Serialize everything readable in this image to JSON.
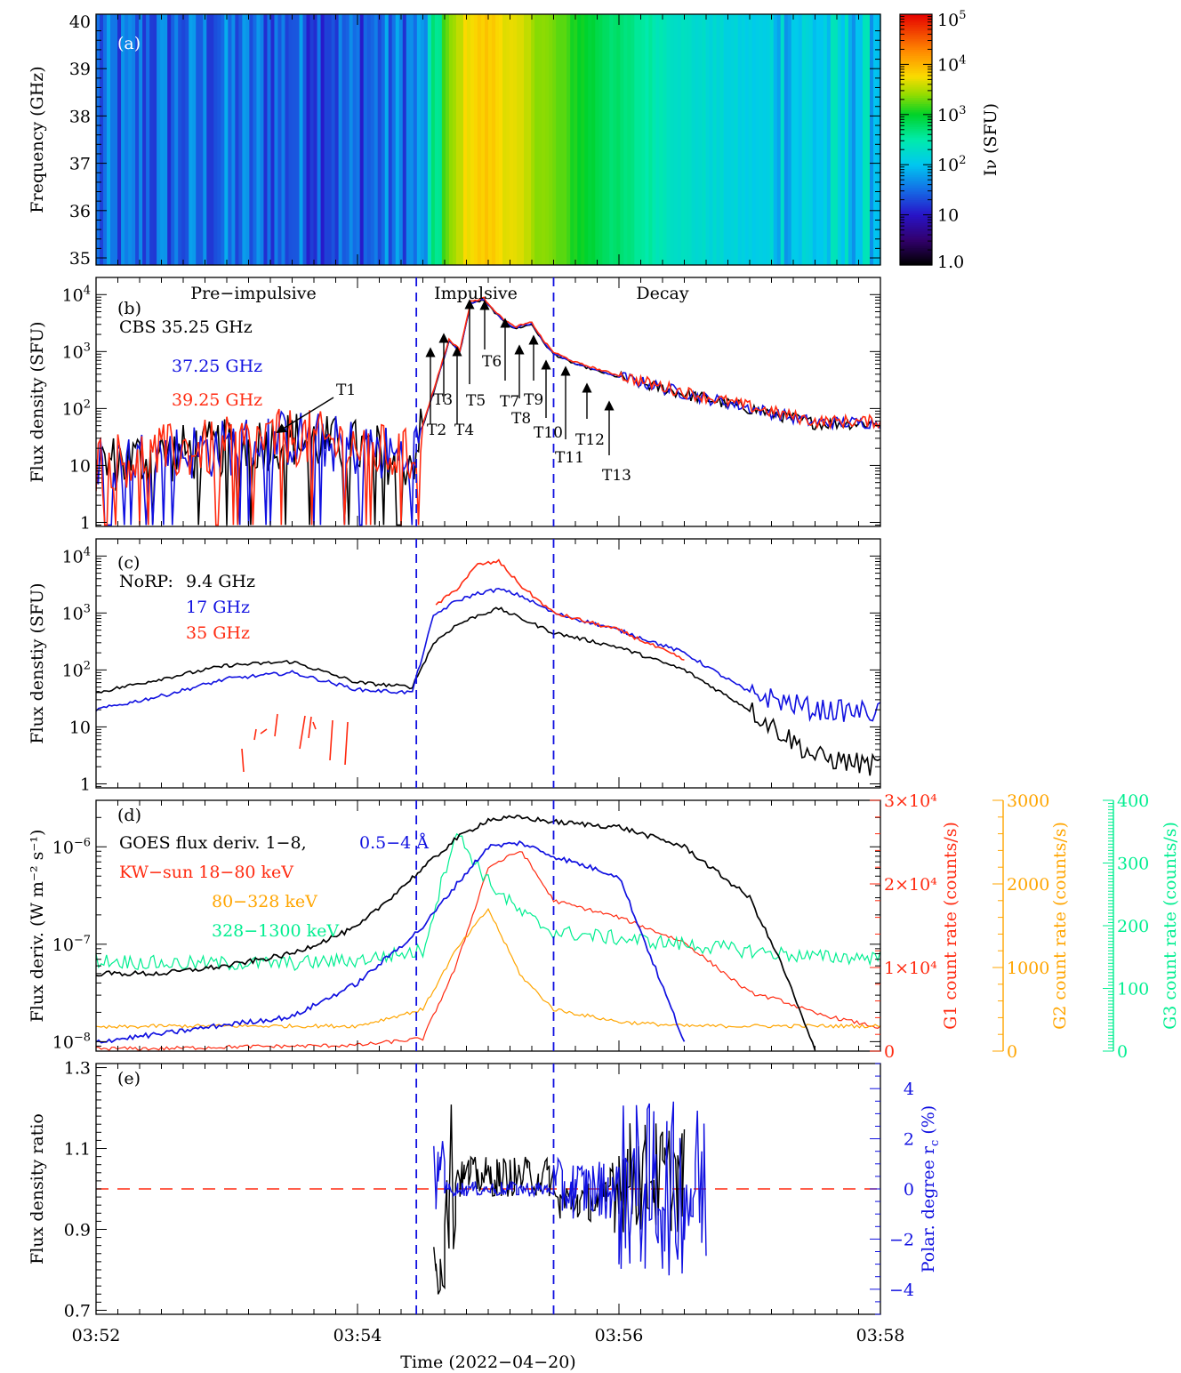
{
  "chart_data": [
    {
      "panel": "(a)",
      "type": "heatmap",
      "ylabel": "Frequency (GHz)",
      "yticks": [
        "35",
        "36",
        "37",
        "38",
        "39",
        "40"
      ],
      "ylim": [
        34.85,
        40.15
      ],
      "xlim": [
        "03:52",
        "03:58"
      ],
      "colorbar": {
        "label": "Iν (SFU)",
        "scale": "log",
        "range": [
          1.0,
          100000
        ],
        "ticks": [
          "1.0",
          "10",
          "10²",
          "10³",
          "10⁴",
          "10⁵"
        ]
      },
      "intensity_profile": {
        "description": "time profile of intensity (SFU), nearly uniform across frequency",
        "time": [
          "03:52:00",
          "03:53:00",
          "03:54:00",
          "03:54:30",
          "03:54:40",
          "03:54:50",
          "03:55:00",
          "03:55:20",
          "03:55:40",
          "03:56:00",
          "03:56:30",
          "03:57:00",
          "03:58:00"
        ],
        "values": [
          25,
          30,
          25,
          40,
          1500,
          5500,
          7500,
          3000,
          1200,
          500,
          200,
          120,
          110
        ]
      }
    },
    {
      "panel": "(b)",
      "type": "line",
      "ylabel": "Flux density (SFU)",
      "yscale": "log",
      "ylim": [
        0.85,
        20000
      ],
      "yticks": [
        "1",
        "10",
        "10²",
        "10³",
        "10⁴"
      ],
      "phase_labels": [
        "Pre−impulsive",
        "Impulsive",
        "Decay"
      ],
      "vlines": [
        "03:54:27",
        "03:55:30"
      ],
      "series": [
        {
          "name": "CBS 35.25 GHz",
          "color": "#000000"
        },
        {
          "name": "37.25 GHz",
          "color": "#1010e0"
        },
        {
          "name": "39.25 GHz",
          "color": "#ff2a10"
        }
      ],
      "time": [
        "03:52:00",
        "03:52:30",
        "03:53:00",
        "03:53:30",
        "03:54:00",
        "03:54:25",
        "03:54:35",
        "03:54:42",
        "03:54:47",
        "03:54:52",
        "03:54:58",
        "03:55:05",
        "03:55:12",
        "03:55:20",
        "03:55:25",
        "03:55:30",
        "03:55:40",
        "03:55:55",
        "03:56:10",
        "03:56:30",
        "03:57:00",
        "03:57:30",
        "03:58:00"
      ],
      "values": [
        10,
        15,
        20,
        30,
        20,
        12,
        200,
        1500,
        1000,
        7000,
        8000,
        4000,
        2500,
        3000,
        1500,
        900,
        600,
        400,
        280,
        180,
        100,
        55,
        55
      ],
      "annotations": [
        "T1",
        "T2",
        "T3",
        "T4",
        "T5",
        "T6",
        "T7",
        "T8",
        "T9",
        "T10",
        "T11",
        "T12",
        "T13"
      ]
    },
    {
      "panel": "(c)",
      "type": "line",
      "ylabel": "Flux denstiy (SFU)",
      "yscale": "log",
      "ylim": [
        0.85,
        20000
      ],
      "yticks": [
        "1",
        "10",
        "10²",
        "10³",
        "10⁴"
      ],
      "legend_title": "NoRP:",
      "time": [
        "03:52:00",
        "03:52:30",
        "03:53:00",
        "03:53:30",
        "03:54:00",
        "03:54:25",
        "03:54:35",
        "03:54:45",
        "03:54:55",
        "03:55:05",
        "03:55:15",
        "03:55:30",
        "03:56:00",
        "03:56:30",
        "03:57:00",
        "03:57:30",
        "03:58:00"
      ],
      "series": [
        {
          "name": "9.4 GHz",
          "color": "#000000",
          "values": [
            40,
            70,
            120,
            140,
            60,
            50,
            300,
            600,
            900,
            1200,
            800,
            450,
            250,
            100,
            20,
            3,
            2
          ]
        },
        {
          "name": "17 GHz",
          "color": "#1010e0",
          "values": [
            20,
            35,
            70,
            90,
            45,
            40,
            900,
            1600,
            2200,
            2600,
            2000,
            1000,
            500,
            200,
            40,
            20,
            18
          ]
        },
        {
          "name": "35 GHz",
          "color": "#ff2a10",
          "values": [
            null,
            null,
            null,
            null,
            null,
            null,
            1300,
            2500,
            7000,
            8000,
            3000,
            1000,
            500,
            150,
            null,
            null,
            null
          ]
        }
      ]
    },
    {
      "panel": "(d)",
      "type": "line",
      "ylabel": "Flux deriv. (W m⁻² s⁻¹)",
      "yscale": "log",
      "ylim": [
        8e-09,
        3e-06
      ],
      "yticks": [
        "10⁻⁸",
        "10⁻⁷",
        "10⁻⁶"
      ],
      "right_axes": [
        {
          "label": "G1 count rate (counts/s)",
          "color": "#ff2a10",
          "range": [
            0,
            30000
          ],
          "ticks": [
            "0",
            "1×10⁴",
            "2×10⁴",
            "3×10⁴"
          ]
        },
        {
          "label": "G2 count rate (counts/s)",
          "color": "#ffa500",
          "range": [
            0,
            3000
          ],
          "ticks": [
            "0",
            "1000",
            "2000",
            "3000"
          ]
        },
        {
          "label": "G3 count rate (counts/s)",
          "color": "#00ee90",
          "range": [
            0,
            400
          ],
          "ticks": [
            "0",
            "100",
            "200",
            "300",
            "400"
          ]
        }
      ],
      "legend": [
        "GOES flux deriv. 1−8,",
        "0.5−4 Å",
        "KW−sun 18−80 keV",
        "80−328 keV",
        "328−1300 keV"
      ],
      "time": [
        "03:52:00",
        "03:52:30",
        "03:53:00",
        "03:53:30",
        "03:54:00",
        "03:54:30",
        "03:54:45",
        "03:55:00",
        "03:55:15",
        "03:55:30",
        "03:56:00",
        "03:56:30",
        "03:57:00",
        "03:57:15",
        "03:57:30",
        "03:58:00"
      ],
      "series": [
        {
          "name": "GOES 1−8",
          "color": "#000000",
          "axis": "left",
          "values": [
            5e-08,
            5e-08,
            6e-08,
            8e-08,
            1.5e-07,
            6e-07,
            1.2e-06,
            1.9e-06,
            2e-06,
            1.8e-06,
            1.6e-06,
            1e-06,
            3e-07,
            6e-08,
            8e-09,
            null
          ]
        },
        {
          "name": "GOES 0.5−4",
          "color": "#1010e0",
          "axis": "left",
          "values": [
            1e-08,
            1.2e-08,
            1.5e-08,
            1.8e-08,
            4e-08,
            1.5e-07,
            4e-07,
            1e-06,
            1.1e-06,
            8e-07,
            5e-07,
            1e-08,
            null,
            null,
            null,
            null
          ]
        },
        {
          "name": "18−80 keV",
          "color": "#ff2a10",
          "axis": "G1",
          "values": [
            300,
            300,
            500,
            600,
            700,
            1500,
            10000,
            22000,
            24000,
            18000,
            16000,
            13000,
            7000,
            6000,
            4500,
            2800
          ]
        },
        {
          "name": "80−328 keV",
          "color": "#ffa500",
          "axis": "G2",
          "values": [
            280,
            300,
            300,
            300,
            300,
            500,
            1200,
            1700,
            900,
            500,
            350,
            300,
            300,
            300,
            300,
            300
          ]
        },
        {
          "name": "328−1300 keV",
          "color": "#00ee90",
          "axis": "G3",
          "values": [
            145,
            140,
            140,
            140,
            145,
            160,
            350,
            270,
            220,
            190,
            180,
            170,
            160,
            155,
            150,
            150
          ]
        }
      ]
    },
    {
      "panel": "(e)",
      "type": "line",
      "ylabel": "Flux density ratio",
      "ylim": [
        0.69,
        1.31
      ],
      "yticks": [
        "0.7",
        "0.9",
        "1.1",
        "1.3"
      ],
      "right_axis": {
        "label": "Polar. degree r",
        "label_sub": "c",
        "label_unit": "(%)",
        "color": "#1010e0",
        "range": [
          -5.0,
          5.0
        ],
        "ticks": [
          "−4",
          "−2",
          "0",
          "2",
          "4"
        ]
      },
      "hline": 1.0,
      "xlabel": "Time (2022−04−20)",
      "xticks": [
        "03:52",
        "03:54",
        "03:56",
        "03:58"
      ],
      "series": [
        {
          "name": "ratio",
          "color": "#000000"
        },
        {
          "name": "polar. degree",
          "color": "#1010e0",
          "axis": "right"
        }
      ]
    }
  ]
}
